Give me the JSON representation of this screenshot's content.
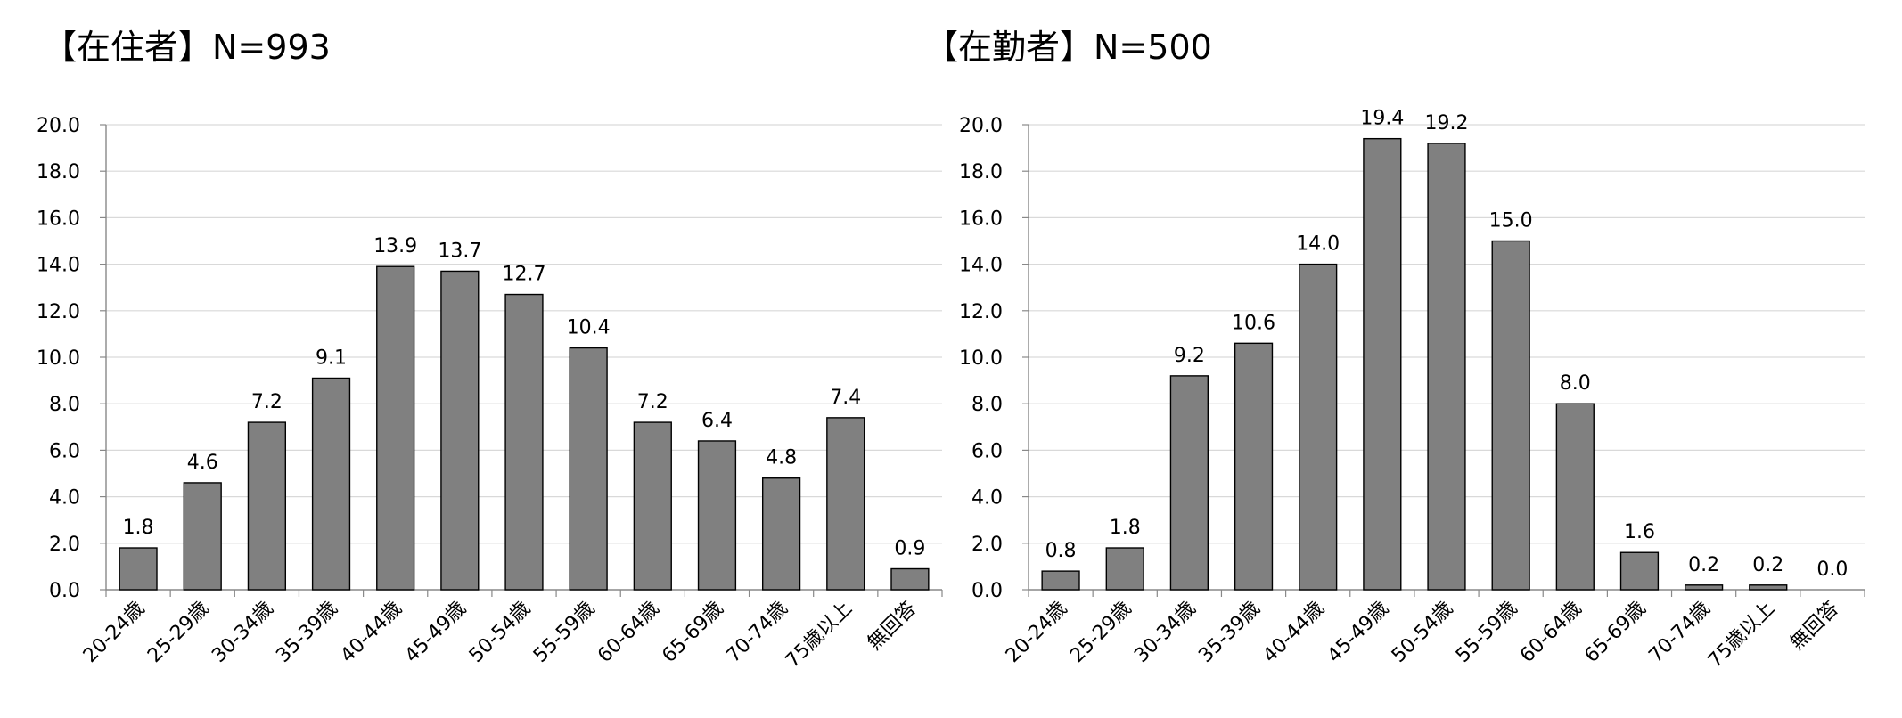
{
  "chart_data": [
    {
      "type": "bar",
      "title": "【在住者】N=993",
      "categories": [
        "20-24歳",
        "25-29歳",
        "30-34歳",
        "35-39歳",
        "40-44歳",
        "45-49歳",
        "50-54歳",
        "55-59歳",
        "60-64歳",
        "65-69歳",
        "70-74歳",
        "75歳以上",
        "無回答"
      ],
      "values": [
        1.8,
        4.6,
        7.2,
        9.1,
        13.9,
        13.7,
        12.7,
        10.4,
        7.2,
        6.4,
        4.8,
        7.4,
        0.9
      ],
      "value_labels": [
        "1.8",
        "4.6",
        "7.2",
        "9.1",
        "13.9",
        "13.7",
        "12.7",
        "10.4",
        "7.2",
        "6.4",
        "4.8",
        "7.4",
        "0.9"
      ],
      "yticks": [
        "0.0",
        "2.0",
        "4.0",
        "6.0",
        "8.0",
        "10.0",
        "12.0",
        "14.0",
        "16.0",
        "18.0",
        "20.0"
      ],
      "ylim": [
        0,
        20
      ],
      "xlabel": "",
      "ylabel": "",
      "grid": true,
      "bar_color": "#808080"
    },
    {
      "type": "bar",
      "title": "【在勤者】N=500",
      "categories": [
        "20-24歳",
        "25-29歳",
        "30-34歳",
        "35-39歳",
        "40-44歳",
        "45-49歳",
        "50-54歳",
        "55-59歳",
        "60-64歳",
        "65-69歳",
        "70-74歳",
        "75歳以上",
        "無回答"
      ],
      "values": [
        0.8,
        1.8,
        9.2,
        10.6,
        14.0,
        19.4,
        19.2,
        15.0,
        8.0,
        1.6,
        0.2,
        0.2,
        0.0
      ],
      "value_labels": [
        "0.8",
        "1.8",
        "9.2",
        "10.6",
        "14.0",
        "19.4",
        "19.2",
        "15.0",
        "8.0",
        "1.6",
        "0.2",
        "0.2",
        "0.0"
      ],
      "yticks": [
        "0.0",
        "2.0",
        "4.0",
        "6.0",
        "8.0",
        "10.0",
        "12.0",
        "14.0",
        "16.0",
        "18.0",
        "20.0"
      ],
      "ylim": [
        0,
        20
      ],
      "xlabel": "",
      "ylabel": "",
      "grid": true,
      "bar_color": "#808080"
    }
  ]
}
